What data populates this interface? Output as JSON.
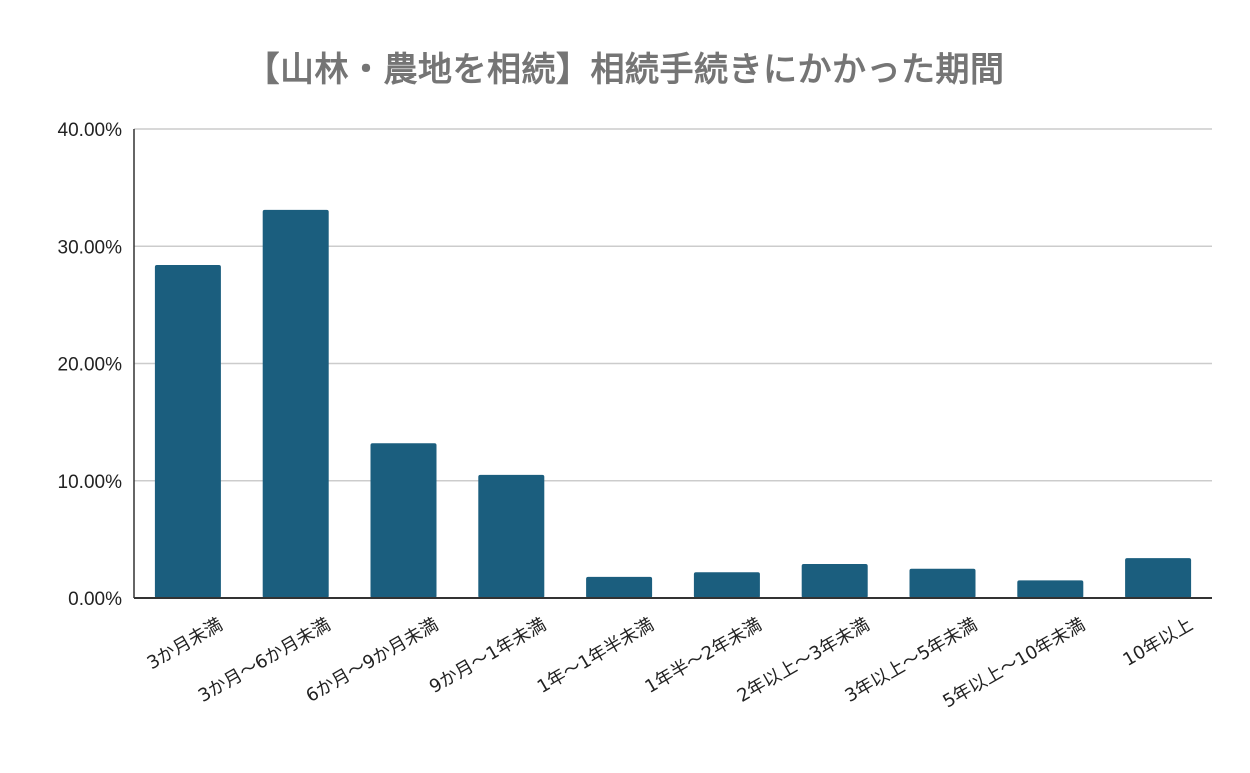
{
  "chart_data": {
    "type": "bar",
    "title": "【山林・農地を相続】相続手続きにかかった期間",
    "xlabel": "",
    "ylabel": "",
    "categories": [
      "3か月未満",
      "3か月〜6か月未満",
      "6か月〜9か月未満",
      "9か月〜1年未満",
      "1年〜1年半未満",
      "1年半〜2年未満",
      "2年以上〜3年未満",
      "3年以上〜5年未満",
      "5年以上〜10年未満",
      "10年以上"
    ],
    "series": [
      {
        "values": [
          28.4,
          33.1,
          13.2,
          10.5,
          1.8,
          2.2,
          2.9,
          2.5,
          1.5,
          3.4
        ]
      }
    ],
    "ylim": [
      0,
      40
    ],
    "yticks": [
      0,
      10,
      20,
      30,
      40
    ],
    "ytick_labels": [
      "0.00%",
      "10.00%",
      "20.00%",
      "30.00%",
      "40.00%"
    ],
    "grid": true,
    "legend": "none",
    "bar_color": "#1b5e7e",
    "grid_color": "#cccccc"
  }
}
